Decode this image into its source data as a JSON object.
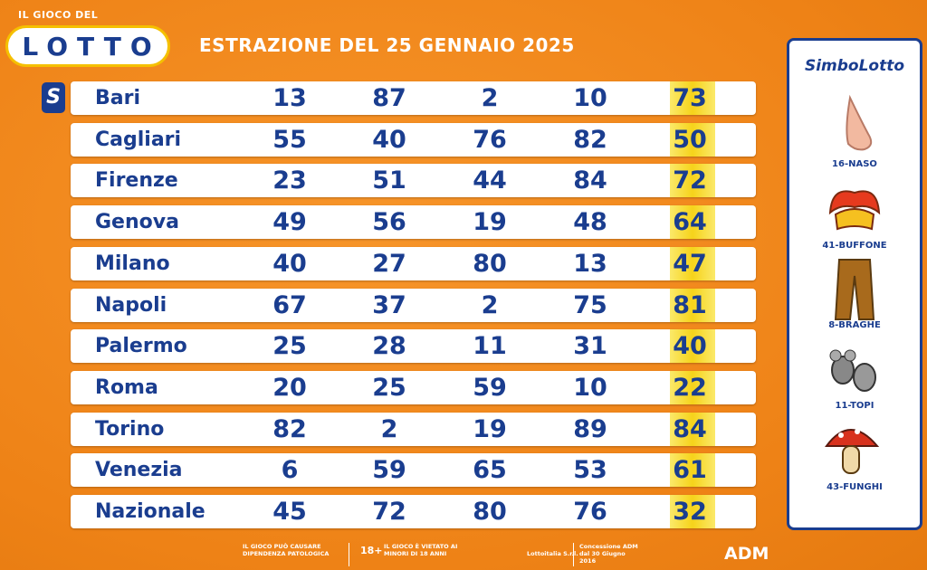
{
  "header": {
    "logo_small": "IL GIOCO DEL",
    "logo": "LOTTO",
    "title": "ESTRAZIONE DEL 25 GENNAIO 2025",
    "badge": "S"
  },
  "table": {
    "rows": [
      [
        "Bari",
        13,
        87,
        2,
        10,
        73
      ],
      [
        "Cagliari",
        55,
        40,
        76,
        82,
        50
      ],
      [
        "Firenze",
        23,
        51,
        44,
        84,
        72
      ],
      [
        "Genova",
        49,
        56,
        19,
        48,
        64
      ],
      [
        "Milano",
        40,
        27,
        80,
        13,
        47
      ],
      [
        "Napoli",
        67,
        37,
        2,
        75,
        81
      ],
      [
        "Palermo",
        25,
        28,
        11,
        31,
        40
      ],
      [
        "Roma",
        20,
        25,
        59,
        10,
        22
      ],
      [
        "Torino",
        82,
        2,
        19,
        89,
        84
      ],
      [
        "Venezia",
        6,
        59,
        65,
        53,
        61
      ],
      [
        "Nazionale",
        45,
        72,
        80,
        76,
        32
      ]
    ]
  },
  "sidebar": {
    "title": "SimboLotto",
    "symbols": [
      "16-NASO",
      "41-BUFFONE",
      "8-BRAGHE",
      "11-TOPI",
      "43-FUNGHI"
    ]
  },
  "footer": {
    "warning": "IL GIOCO PUÒ CAUSARE DIPENDENZA PATOLOGICA",
    "age": "18+",
    "age_text": "IL GIOCO È VIETATO AI MINORI DI 18 ANNI",
    "company": "Lottoitalia S.r.l.",
    "concession": "Concessione ADM dal 30 Giugno 2016",
    "adm": "ADM"
  }
}
